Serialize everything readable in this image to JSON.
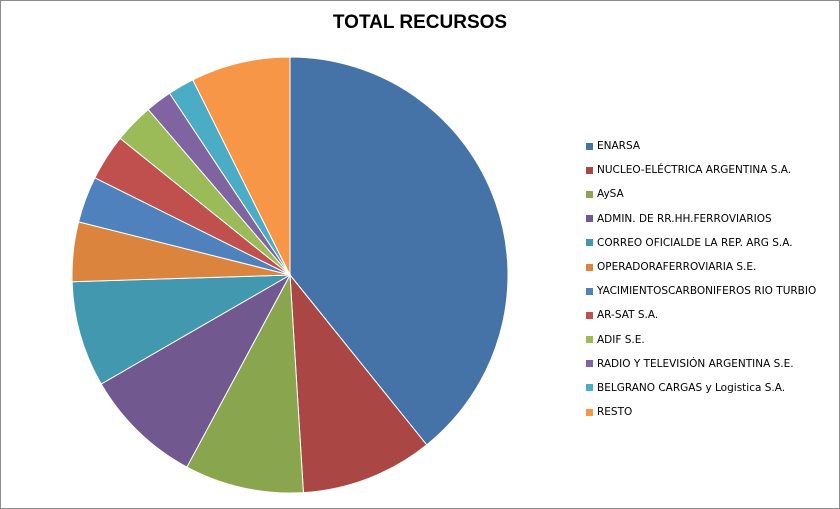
{
  "chart_data": {
    "type": "pie",
    "title": "TOTAL RECURSOS",
    "legend_position": "right",
    "slices": [
      {
        "label": "ENARSA",
        "value": 40.0,
        "color": "#4572A7"
      },
      {
        "label": "NUCLEO-ELÉCTRICA ARGENTINA S.A.",
        "value": 10.0,
        "color": "#AA4643"
      },
      {
        "label": "AySA",
        "value": 9.0,
        "color": "#89A54E"
      },
      {
        "label": "ADMIN. DE RR.HH.FERROVIARIOS",
        "value": 9.0,
        "color": "#71588F"
      },
      {
        "label": "CORREO OFICIALDE LA REP. ARG S.A.",
        "value": 8.0,
        "color": "#4198AF"
      },
      {
        "label": "OPERADORAFERROVIARIA S.E.",
        "value": 4.5,
        "color": "#DB843D"
      },
      {
        "label": "YACIMIENTOSCARBONIFEROS RIO TURBIO",
        "value": 3.5,
        "color": "#4F81BD"
      },
      {
        "label": "AR-SAT S.A.",
        "value": 3.5,
        "color": "#C0504D"
      },
      {
        "label": "ADIF S.E.",
        "value": 3.0,
        "color": "#9BBB59"
      },
      {
        "label": "RADIO Y TELEVISIÓN ARGENTINA S.E.",
        "value": 2.0,
        "color": "#8064A2"
      },
      {
        "label": "BELGRANO CARGAS y Logistica S.A.",
        "value": 2.0,
        "color": "#4BACC6"
      },
      {
        "label": "RESTO",
        "value": 7.5,
        "color": "#F79646"
      }
    ]
  }
}
